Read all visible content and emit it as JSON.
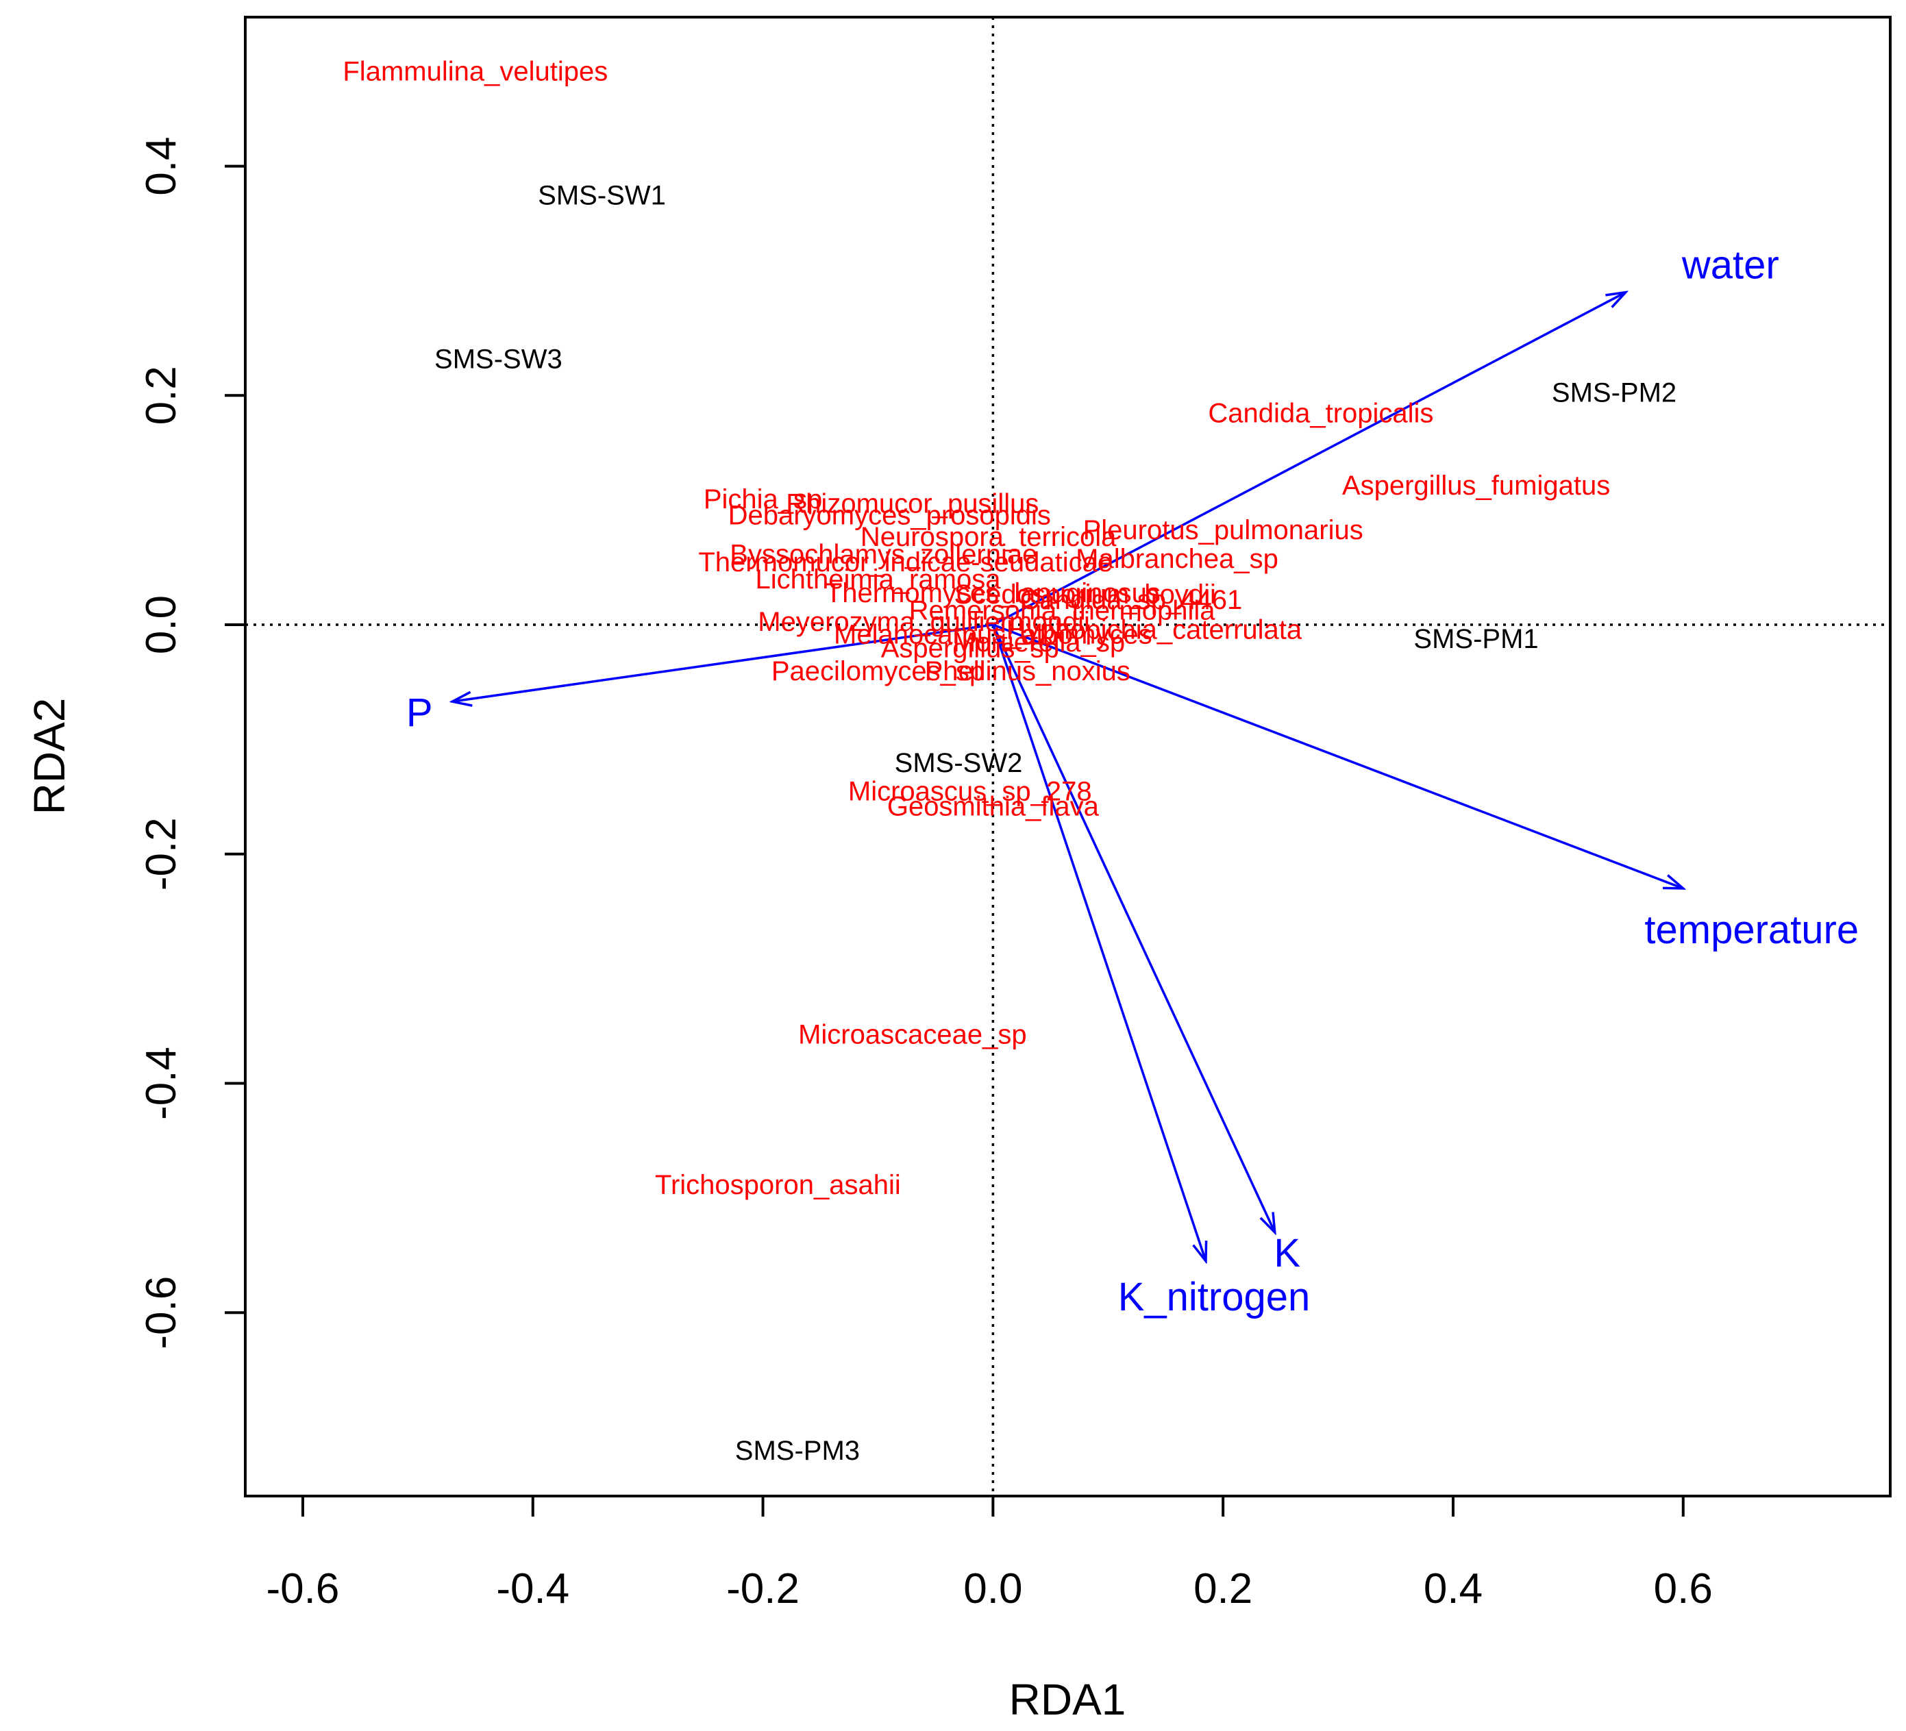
{
  "chart_data": {
    "type": "scatter",
    "title": "",
    "xlabel": "RDA1",
    "ylabel": "RDA2",
    "xlim": [
      -0.65,
      0.78
    ],
    "ylim": [
      -0.76,
      0.53
    ],
    "x_ticks": [
      -0.6,
      -0.4,
      -0.2,
      0.0,
      0.2,
      0.4,
      0.6
    ],
    "x_tick_labels": [
      "-0.6",
      "-0.4",
      "-0.2",
      "0.0",
      "0.2",
      "0.4",
      "0.6"
    ],
    "y_ticks": [
      -0.6,
      -0.4,
      -0.2,
      0.0,
      0.2,
      0.4
    ],
    "y_tick_labels": [
      "-0.6",
      "-0.4",
      "-0.2",
      "0.0",
      "0.2",
      "0.4"
    ],
    "reference_lines": {
      "x": 0.0,
      "y": 0.0,
      "style": "dotted"
    },
    "grid": false,
    "colors": {
      "species": "#ff0000",
      "sites": "#000000",
      "arrows": "#0000ff",
      "axis": "#000000"
    },
    "sites": [
      {
        "label": "SMS-SW1",
        "x": -0.34,
        "y": 0.375
      },
      {
        "label": "SMS-SW3",
        "x": -0.43,
        "y": 0.232
      },
      {
        "label": "SMS-PM2",
        "x": 0.54,
        "y": 0.203
      },
      {
        "label": "SMS-PM1",
        "x": 0.42,
        "y": -0.012
      },
      {
        "label": "SMS-SW2",
        "x": -0.03,
        "y": -0.12
      },
      {
        "label": "SMS-PM3",
        "x": -0.17,
        "y": -0.72
      }
    ],
    "species": [
      {
        "label": "Flammulina_velutipes",
        "x": -0.45,
        "y": 0.483
      },
      {
        "label": "Candida_tropicalis",
        "x": 0.285,
        "y": 0.185
      },
      {
        "label": "Aspergillus_fumigatus",
        "x": 0.42,
        "y": 0.122
      },
      {
        "label": "Pleurotus_pulmonarius",
        "x": 0.2,
        "y": 0.083
      },
      {
        "label": "Malbranchea_sp",
        "x": 0.16,
        "y": 0.058
      },
      {
        "label": "Pichia_sp",
        "x": -0.2,
        "y": 0.11
      },
      {
        "label": "Rhizomucor_pusillus",
        "x": -0.07,
        "y": 0.106
      },
      {
        "label": "Debaryomyces_prosopidis",
        "x": -0.09,
        "y": 0.096
      },
      {
        "label": "Neurospora_terricola",
        "x": -0.004,
        "y": 0.077
      },
      {
        "label": "Byssochlamys_zollerniae",
        "x": -0.095,
        "y": 0.062
      },
      {
        "label": "Thermomucor_indicae-seudaticae",
        "x": -0.076,
        "y": 0.055
      },
      {
        "label": "Lichtheimia_ramosa",
        "x": -0.1,
        "y": 0.04
      },
      {
        "label": "Thermomyces_lanuginosus",
        "x": 0.0,
        "y": 0.028
      },
      {
        "label": "Scedosporium_boydii",
        "x": 0.08,
        "y": 0.027
      },
      {
        "label": "Candida_sp_4461",
        "x": 0.12,
        "y": 0.022
      },
      {
        "label": "Remersonia_thermophila",
        "x": 0.06,
        "y": 0.013
      },
      {
        "label": "Meyerozyma_guilliermondii",
        "x": -0.06,
        "y": 0.003
      },
      {
        "label": "Melanocarpus_albomyces",
        "x": 0.0,
        "y": -0.008
      },
      {
        "label": "Hyphopichia_caterrulata",
        "x": 0.14,
        "y": -0.004
      },
      {
        "label": "Mortierella_sp",
        "x": 0.04,
        "y": -0.015
      },
      {
        "label": "Aspergillus_sp",
        "x": -0.02,
        "y": -0.02
      },
      {
        "label": "Paecilomyces_sp",
        "x": -0.1,
        "y": -0.04
      },
      {
        "label": "Phellinus_noxius",
        "x": 0.03,
        "y": -0.04
      },
      {
        "label": "Microascus_sp_278",
        "x": -0.02,
        "y": -0.145
      },
      {
        "label": "Geosmithia_flava",
        "x": 0.0,
        "y": -0.158
      },
      {
        "label": "Microascaceae_sp",
        "x": -0.07,
        "y": -0.357
      },
      {
        "label": "Trichosporon_asahii",
        "x": -0.187,
        "y": -0.488
      }
    ],
    "arrows": [
      {
        "label": "water",
        "x": 0.55,
        "y": 0.29
      },
      {
        "label": "temperature",
        "x": 0.6,
        "y": -0.23
      },
      {
        "label": "P",
        "x": -0.47,
        "y": -0.067
      },
      {
        "label": "K_nitrogen",
        "x": 0.185,
        "y": -0.555
      },
      {
        "label": "K",
        "x": 0.245,
        "y": -0.53
      }
    ]
  }
}
